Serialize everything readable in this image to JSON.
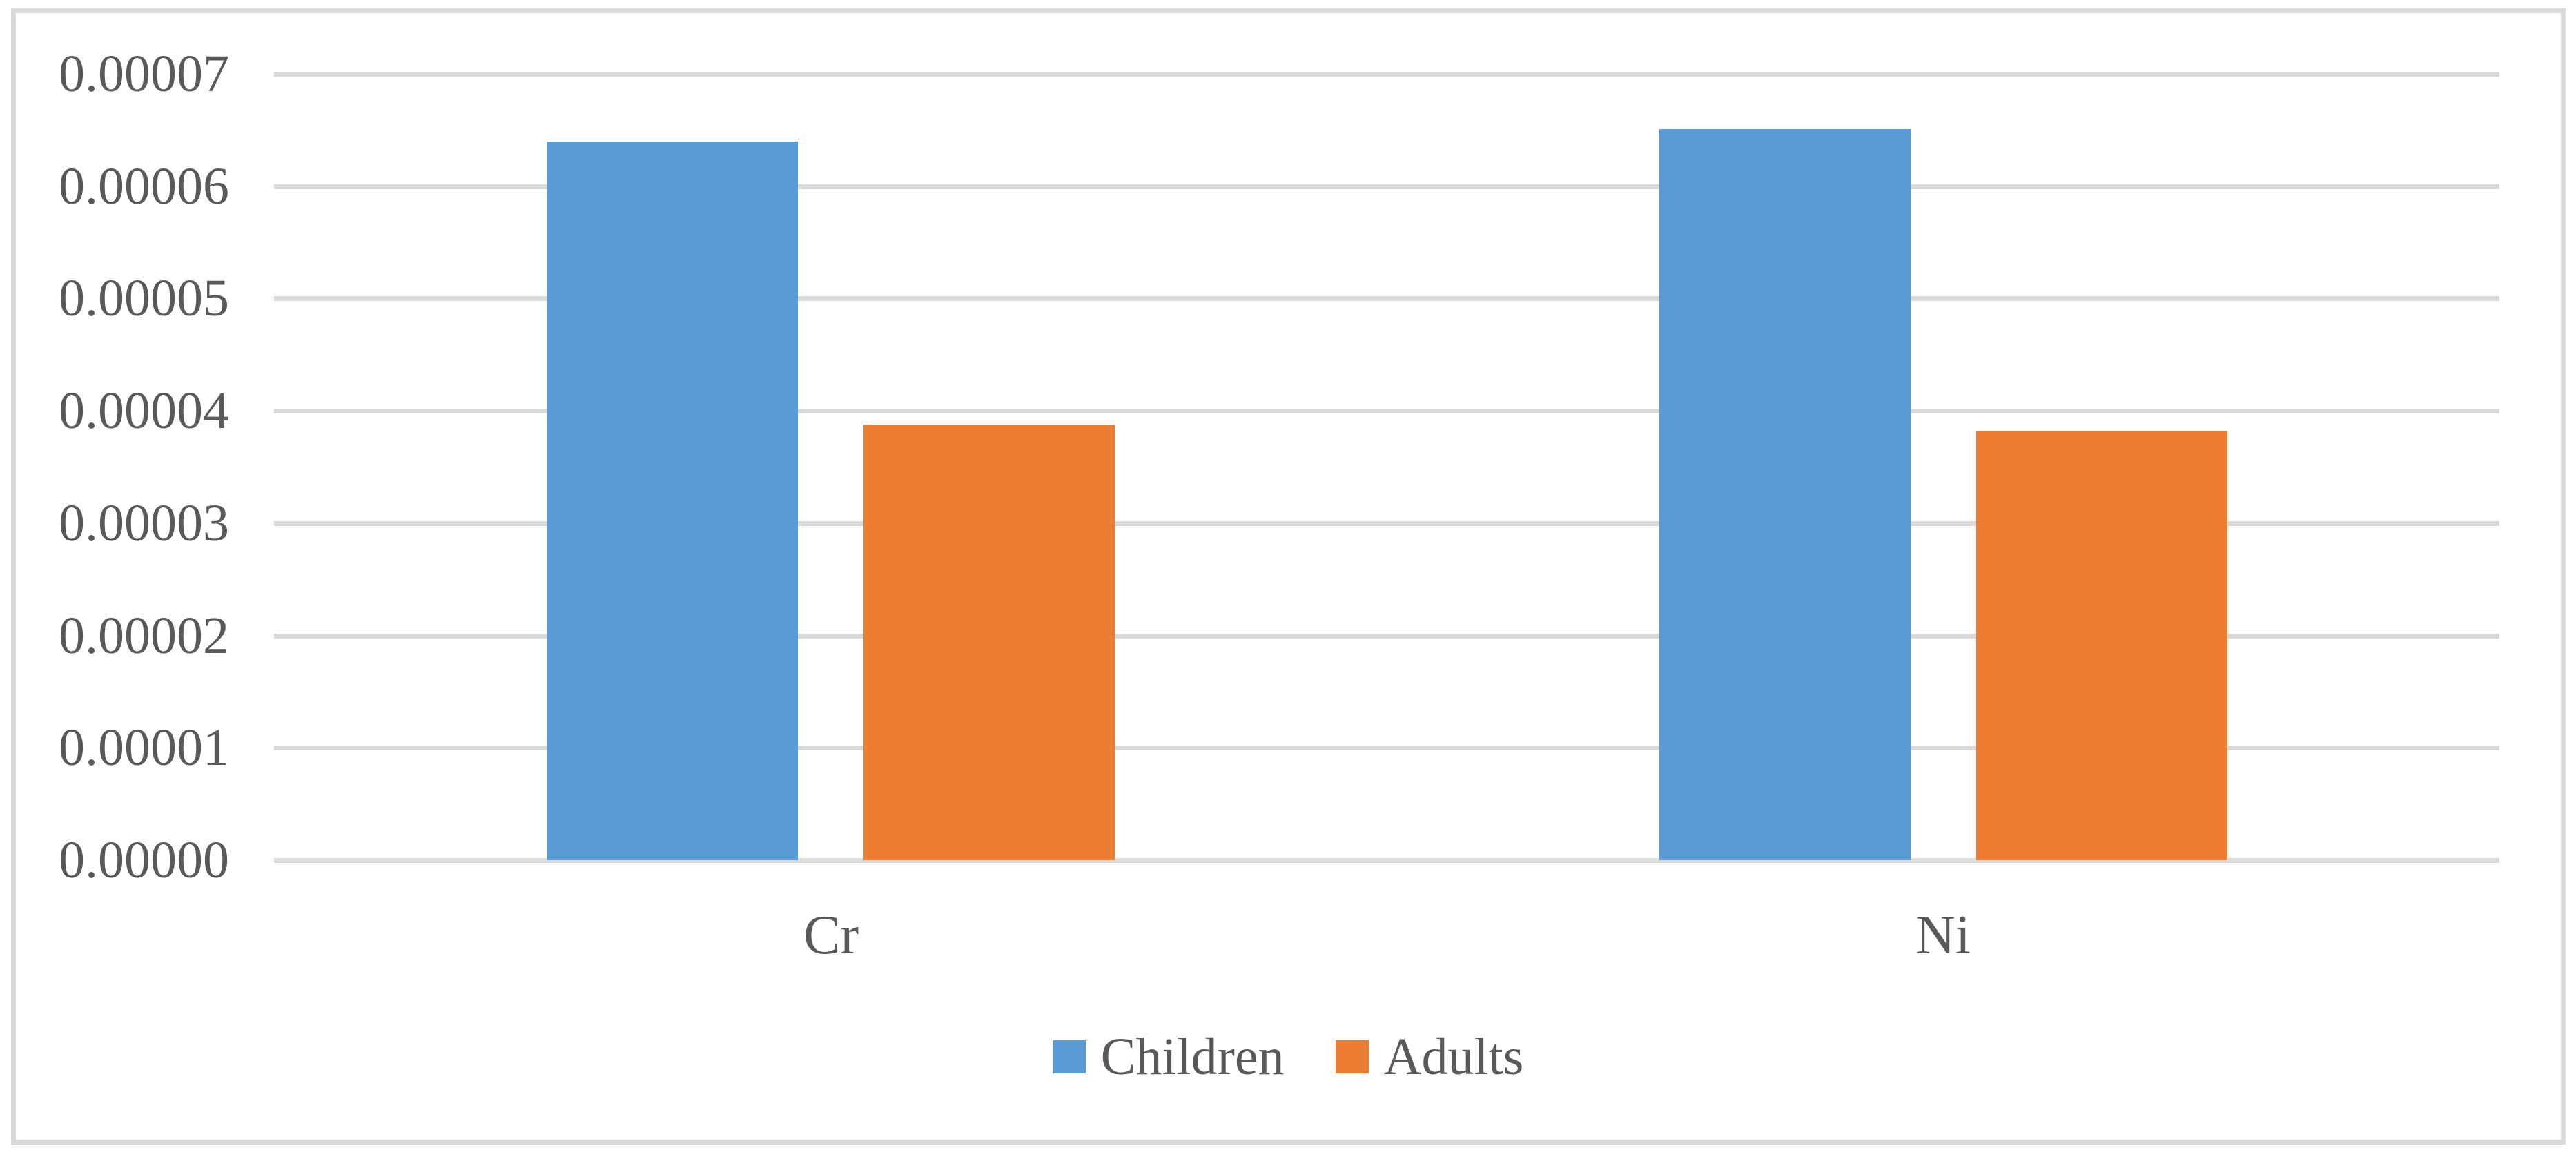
{
  "figure": {
    "background": "#ffffff",
    "border_color": "#d9d9d9"
  },
  "chart_data": {
    "type": "bar",
    "categories": [
      "Cr",
      "Ni"
    ],
    "series": [
      {
        "name": "Children",
        "color": "#5B9BD5",
        "values": [
          6.4e-05,
          6.51e-05
        ]
      },
      {
        "name": "Adults",
        "color": "#ED7D31",
        "values": [
          3.88e-05,
          3.82e-05
        ]
      }
    ],
    "title": "",
    "xlabel": "",
    "ylabel": "",
    "ylim": [
      0,
      7e-05
    ],
    "ytick_step": 1e-05,
    "ytick_labels": [
      "0.00000",
      "0.00001",
      "0.00002",
      "0.00003",
      "0.00004",
      "0.00005",
      "0.00006",
      "0.00007"
    ],
    "grid": true,
    "legend_position": "bottom",
    "text_color": "#595959",
    "gridline_color": "#d9d9d9"
  }
}
